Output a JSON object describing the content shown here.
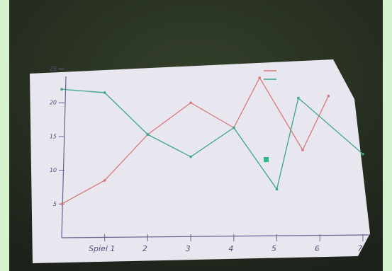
{
  "chart_data": {
    "type": "line",
    "x": [
      0,
      1,
      2,
      3,
      4,
      4.5,
      5.5,
      6.2
    ],
    "series": [
      {
        "color": "#d9787a",
        "x": [
          0,
          1,
          2,
          3,
          4,
          4.6,
          5.6,
          6.2
        ],
        "values": [
          5,
          8.5,
          15.3,
          20,
          16.3,
          23.7,
          13,
          21
        ]
      },
      {
        "color": "#3aa58a",
        "x": [
          0,
          1,
          2,
          3,
          4,
          5,
          5.5,
          7
        ],
        "values": [
          22,
          21.5,
          15.3,
          12,
          16.3,
          7.2,
          20.7,
          12.4
        ]
      }
    ],
    "xlim": [
      0,
      7.1
    ],
    "xticks": [
      {
        "value": 1,
        "label": "Spiel 1"
      },
      2,
      3,
      4,
      5,
      6,
      7
    ],
    "ylim": [
      0,
      26
    ],
    "yticks": [
      5,
      10,
      15,
      20,
      25
    ]
  }
}
